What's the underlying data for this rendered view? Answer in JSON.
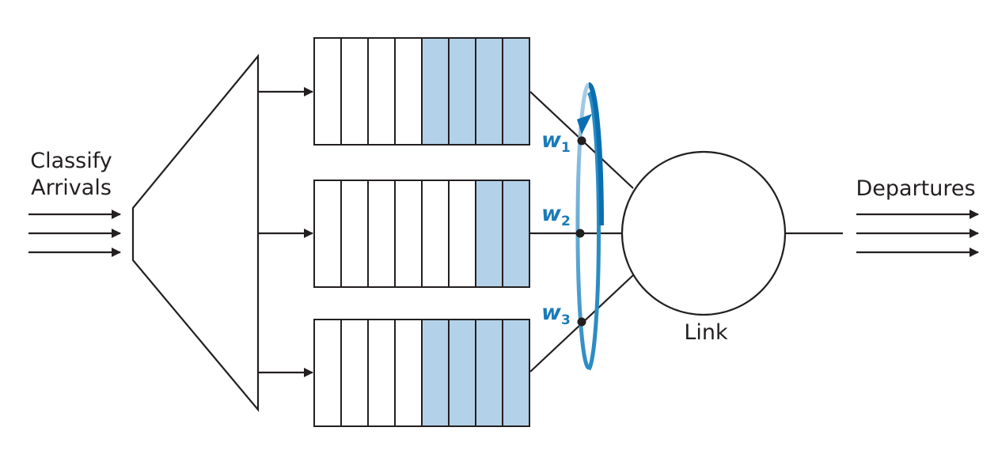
{
  "labels": {
    "arrivals_line1": "Classify",
    "arrivals_line2": "Arrivals",
    "departures": "Departures",
    "link": "Link"
  },
  "weights": [
    {
      "symbol": "w",
      "subscript": "1"
    },
    {
      "symbol": "w",
      "subscript": "2"
    },
    {
      "symbol": "w",
      "subscript": "3"
    }
  ],
  "queues": [
    {
      "cells": 8,
      "filled": 4
    },
    {
      "cells": 8,
      "filled": 2
    },
    {
      "cells": 8,
      "filled": 4
    }
  ],
  "colors": {
    "line": "#231f20",
    "queue_fill": "#b3d1e8",
    "scheduler_dark": "#0a6fb0",
    "scheduler_light": "#a9cde6",
    "weight_text": "#1a7bb9"
  },
  "icons": {
    "round_robin": "circular-arrow-icon",
    "arrivals": "arrow-right-icon",
    "departures": "arrow-right-icon"
  }
}
